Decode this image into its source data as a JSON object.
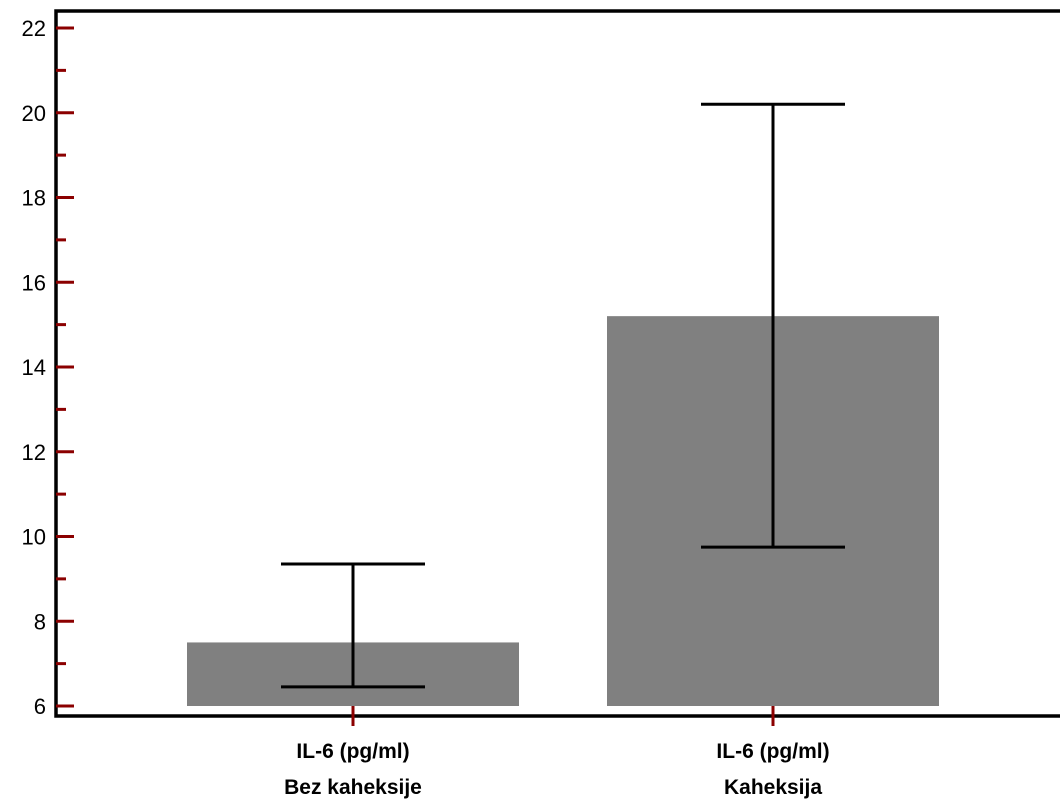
{
  "chart_data": {
    "type": "bar",
    "categories": [
      [
        "IL-6 (pg/ml)",
        "Bez kaheksije"
      ],
      [
        "IL-6 (pg/ml)",
        "Kaheksija"
      ]
    ],
    "values": [
      7.5,
      15.2
    ],
    "error_low": [
      6.45,
      9.75
    ],
    "error_high": [
      9.35,
      20.2
    ],
    "ylim": [
      6,
      22
    ],
    "yticks": [
      6,
      8,
      10,
      12,
      14,
      16,
      18,
      20,
      22
    ],
    "yminor_step": 1,
    "bar_color": "#808080",
    "tick_color": "#8b0000",
    "axis_color": "#000000",
    "title": "",
    "xlabel": "",
    "ylabel": ""
  }
}
